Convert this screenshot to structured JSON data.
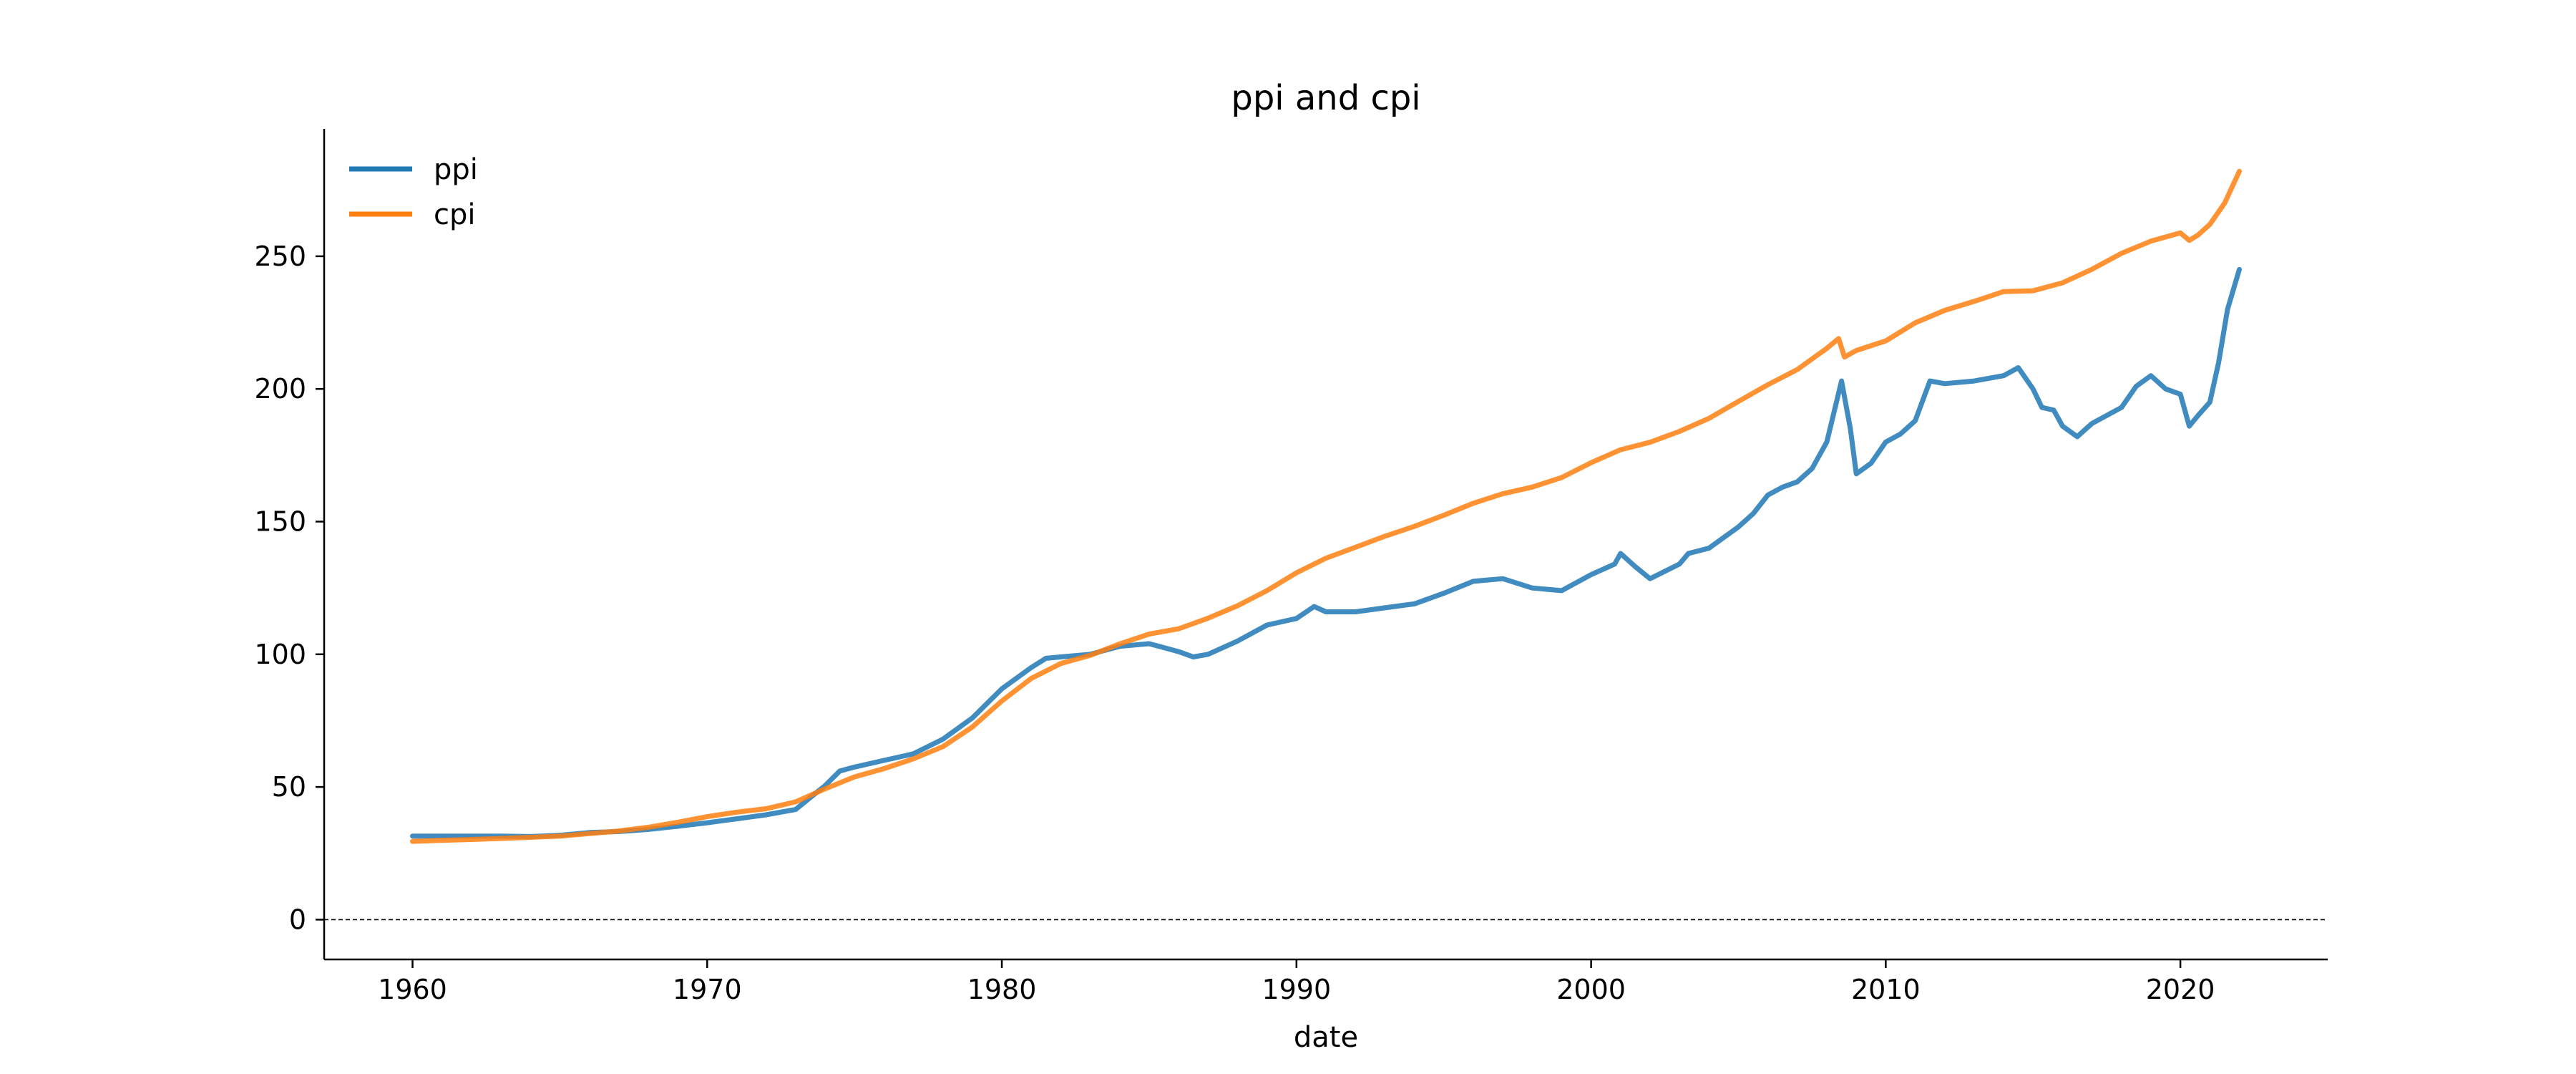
{
  "chart_data": {
    "type": "line",
    "title": "ppi and cpi",
    "xlabel": "date",
    "ylabel": "",
    "xlim": [
      1957,
      2025
    ],
    "ylim": [
      -15,
      298
    ],
    "xticks": [
      1960,
      1970,
      1980,
      1990,
      2000,
      2010,
      2020
    ],
    "yticks": [
      0,
      50,
      100,
      150,
      200,
      250
    ],
    "legend_position": "top-left",
    "grid": false,
    "reference_line": {
      "y": 0,
      "style": "dashed"
    },
    "series": [
      {
        "name": "ppi",
        "color": "#1f77b4",
        "x": [
          1960,
          1961,
          1962,
          1963,
          1964,
          1965,
          1966,
          1967,
          1968,
          1969,
          1970,
          1971,
          1972,
          1973,
          1973.5,
          1974,
          1974.5,
          1975,
          1976,
          1977,
          1978,
          1979,
          1980,
          1981,
          1981.5,
          1982,
          1983,
          1984,
          1985,
          1985.5,
          1986,
          1986.5,
          1987,
          1988,
          1989,
          1990,
          1990.6,
          1991,
          1992,
          1993,
          1994,
          1995,
          1996,
          1997,
          1998,
          1999,
          2000,
          2000.8,
          2001,
          2001.5,
          2002,
          2003,
          2003.3,
          2004,
          2005,
          2005.5,
          2006,
          2006.5,
          2007,
          2007.5,
          2008,
          2008.5,
          2008.8,
          2009,
          2009.5,
          2010,
          2010.5,
          2011,
          2011.5,
          2012,
          2013,
          2014,
          2014.5,
          2015,
          2015.3,
          2015.7,
          2016,
          2016.5,
          2017,
          2018,
          2018.5,
          2019,
          2019.5,
          2020,
          2020.3,
          2020.6,
          2021,
          2021.3,
          2021.6,
          2022
        ],
        "y": [
          31.5,
          31.5,
          31.5,
          31.5,
          31.3,
          31.8,
          32.8,
          33.2,
          34,
          35.2,
          36.5,
          38,
          39.5,
          41.5,
          46,
          50.5,
          56,
          57.5,
          60,
          62.5,
          68,
          76,
          87,
          95,
          98.5,
          99,
          100,
          103,
          104,
          102.5,
          101,
          99,
          100,
          105,
          111,
          113.5,
          118,
          116,
          116,
          117.5,
          119,
          123,
          127.5,
          128.5,
          125,
          124,
          130,
          134,
          138,
          133,
          128.5,
          134,
          138,
          140,
          148,
          153,
          160,
          163,
          165,
          170,
          180,
          203,
          185,
          168,
          172,
          180,
          183,
          188,
          203,
          202,
          203,
          205,
          208,
          200,
          193,
          192,
          186,
          182,
          187,
          193,
          201,
          205,
          200,
          198,
          186,
          190,
          195,
          210,
          230,
          245
        ]
      },
      {
        "name": "cpi",
        "color": "#ff7f0e",
        "x": [
          1960,
          1961,
          1962,
          1963,
          1964,
          1965,
          1966,
          1967,
          1968,
          1969,
          1970,
          1971,
          1972,
          1973,
          1974,
          1975,
          1976,
          1977,
          1978,
          1979,
          1980,
          1981,
          1982,
          1983,
          1984,
          1985,
          1986,
          1987,
          1988,
          1989,
          1990,
          1991,
          1992,
          1993,
          1994,
          1995,
          1996,
          1997,
          1998,
          1999,
          2000,
          2001,
          2002,
          2003,
          2004,
          2005,
          2006,
          2007,
          2008,
          2008.4,
          2008.6,
          2009,
          2010,
          2011,
          2012,
          2013,
          2014,
          2015,
          2016,
          2017,
          2018,
          2019,
          2020,
          2020.3,
          2020.6,
          2021,
          2021.5,
          2022
        ],
        "y": [
          29.5,
          29.9,
          30.2,
          30.6,
          31,
          31.5,
          32.4,
          33.4,
          34.8,
          36.7,
          38.8,
          40.5,
          41.8,
          44.4,
          49.3,
          53.8,
          56.9,
          60.6,
          65.2,
          72.6,
          82.4,
          90.9,
          96.5,
          99.6,
          103.9,
          107.6,
          109.6,
          113.6,
          118.3,
          124,
          130.7,
          136.2,
          140.3,
          144.5,
          148.2,
          152.4,
          156.9,
          160.5,
          163,
          166.6,
          172.2,
          177.1,
          179.9,
          184,
          188.9,
          195.3,
          201.6,
          207.3,
          215.3,
          219,
          212,
          214.5,
          218.1,
          224.9,
          229.6,
          233,
          236.7,
          237,
          240,
          245.1,
          251.1,
          255.7,
          258.8,
          256,
          258,
          262,
          270,
          282
        ]
      }
    ]
  }
}
